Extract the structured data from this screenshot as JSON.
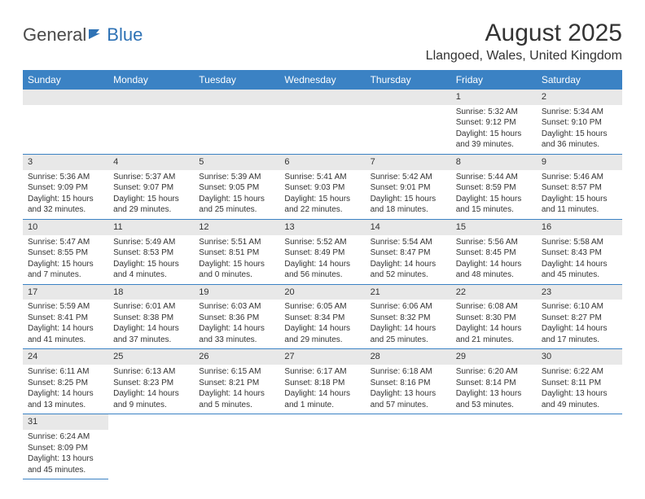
{
  "logo": {
    "general": "General",
    "blue": "Blue"
  },
  "title": "August 2025",
  "location": "Llangoed, Wales, United Kingdom",
  "colors": {
    "header_bg": "#3b82c4",
    "header_text": "#ffffff",
    "daynum_bg": "#e8e8e8",
    "border": "#3b82c4",
    "logo_gray": "#4a4a4a",
    "logo_blue": "#2e72b5"
  },
  "weekdays": [
    "Sunday",
    "Monday",
    "Tuesday",
    "Wednesday",
    "Thursday",
    "Friday",
    "Saturday"
  ],
  "weeks": [
    [
      null,
      null,
      null,
      null,
      null,
      {
        "n": "1",
        "sr": "Sunrise: 5:32 AM",
        "ss": "Sunset: 9:12 PM",
        "d1": "Daylight: 15 hours",
        "d2": "and 39 minutes."
      },
      {
        "n": "2",
        "sr": "Sunrise: 5:34 AM",
        "ss": "Sunset: 9:10 PM",
        "d1": "Daylight: 15 hours",
        "d2": "and 36 minutes."
      }
    ],
    [
      {
        "n": "3",
        "sr": "Sunrise: 5:36 AM",
        "ss": "Sunset: 9:09 PM",
        "d1": "Daylight: 15 hours",
        "d2": "and 32 minutes."
      },
      {
        "n": "4",
        "sr": "Sunrise: 5:37 AM",
        "ss": "Sunset: 9:07 PM",
        "d1": "Daylight: 15 hours",
        "d2": "and 29 minutes."
      },
      {
        "n": "5",
        "sr": "Sunrise: 5:39 AM",
        "ss": "Sunset: 9:05 PM",
        "d1": "Daylight: 15 hours",
        "d2": "and 25 minutes."
      },
      {
        "n": "6",
        "sr": "Sunrise: 5:41 AM",
        "ss": "Sunset: 9:03 PM",
        "d1": "Daylight: 15 hours",
        "d2": "and 22 minutes."
      },
      {
        "n": "7",
        "sr": "Sunrise: 5:42 AM",
        "ss": "Sunset: 9:01 PM",
        "d1": "Daylight: 15 hours",
        "d2": "and 18 minutes."
      },
      {
        "n": "8",
        "sr": "Sunrise: 5:44 AM",
        "ss": "Sunset: 8:59 PM",
        "d1": "Daylight: 15 hours",
        "d2": "and 15 minutes."
      },
      {
        "n": "9",
        "sr": "Sunrise: 5:46 AM",
        "ss": "Sunset: 8:57 PM",
        "d1": "Daylight: 15 hours",
        "d2": "and 11 minutes."
      }
    ],
    [
      {
        "n": "10",
        "sr": "Sunrise: 5:47 AM",
        "ss": "Sunset: 8:55 PM",
        "d1": "Daylight: 15 hours",
        "d2": "and 7 minutes."
      },
      {
        "n": "11",
        "sr": "Sunrise: 5:49 AM",
        "ss": "Sunset: 8:53 PM",
        "d1": "Daylight: 15 hours",
        "d2": "and 4 minutes."
      },
      {
        "n": "12",
        "sr": "Sunrise: 5:51 AM",
        "ss": "Sunset: 8:51 PM",
        "d1": "Daylight: 15 hours",
        "d2": "and 0 minutes."
      },
      {
        "n": "13",
        "sr": "Sunrise: 5:52 AM",
        "ss": "Sunset: 8:49 PM",
        "d1": "Daylight: 14 hours",
        "d2": "and 56 minutes."
      },
      {
        "n": "14",
        "sr": "Sunrise: 5:54 AM",
        "ss": "Sunset: 8:47 PM",
        "d1": "Daylight: 14 hours",
        "d2": "and 52 minutes."
      },
      {
        "n": "15",
        "sr": "Sunrise: 5:56 AM",
        "ss": "Sunset: 8:45 PM",
        "d1": "Daylight: 14 hours",
        "d2": "and 48 minutes."
      },
      {
        "n": "16",
        "sr": "Sunrise: 5:58 AM",
        "ss": "Sunset: 8:43 PM",
        "d1": "Daylight: 14 hours",
        "d2": "and 45 minutes."
      }
    ],
    [
      {
        "n": "17",
        "sr": "Sunrise: 5:59 AM",
        "ss": "Sunset: 8:41 PM",
        "d1": "Daylight: 14 hours",
        "d2": "and 41 minutes."
      },
      {
        "n": "18",
        "sr": "Sunrise: 6:01 AM",
        "ss": "Sunset: 8:38 PM",
        "d1": "Daylight: 14 hours",
        "d2": "and 37 minutes."
      },
      {
        "n": "19",
        "sr": "Sunrise: 6:03 AM",
        "ss": "Sunset: 8:36 PM",
        "d1": "Daylight: 14 hours",
        "d2": "and 33 minutes."
      },
      {
        "n": "20",
        "sr": "Sunrise: 6:05 AM",
        "ss": "Sunset: 8:34 PM",
        "d1": "Daylight: 14 hours",
        "d2": "and 29 minutes."
      },
      {
        "n": "21",
        "sr": "Sunrise: 6:06 AM",
        "ss": "Sunset: 8:32 PM",
        "d1": "Daylight: 14 hours",
        "d2": "and 25 minutes."
      },
      {
        "n": "22",
        "sr": "Sunrise: 6:08 AM",
        "ss": "Sunset: 8:30 PM",
        "d1": "Daylight: 14 hours",
        "d2": "and 21 minutes."
      },
      {
        "n": "23",
        "sr": "Sunrise: 6:10 AM",
        "ss": "Sunset: 8:27 PM",
        "d1": "Daylight: 14 hours",
        "d2": "and 17 minutes."
      }
    ],
    [
      {
        "n": "24",
        "sr": "Sunrise: 6:11 AM",
        "ss": "Sunset: 8:25 PM",
        "d1": "Daylight: 14 hours",
        "d2": "and 13 minutes."
      },
      {
        "n": "25",
        "sr": "Sunrise: 6:13 AM",
        "ss": "Sunset: 8:23 PM",
        "d1": "Daylight: 14 hours",
        "d2": "and 9 minutes."
      },
      {
        "n": "26",
        "sr": "Sunrise: 6:15 AM",
        "ss": "Sunset: 8:21 PM",
        "d1": "Daylight: 14 hours",
        "d2": "and 5 minutes."
      },
      {
        "n": "27",
        "sr": "Sunrise: 6:17 AM",
        "ss": "Sunset: 8:18 PM",
        "d1": "Daylight: 14 hours",
        "d2": "and 1 minute."
      },
      {
        "n": "28",
        "sr": "Sunrise: 6:18 AM",
        "ss": "Sunset: 8:16 PM",
        "d1": "Daylight: 13 hours",
        "d2": "and 57 minutes."
      },
      {
        "n": "29",
        "sr": "Sunrise: 6:20 AM",
        "ss": "Sunset: 8:14 PM",
        "d1": "Daylight: 13 hours",
        "d2": "and 53 minutes."
      },
      {
        "n": "30",
        "sr": "Sunrise: 6:22 AM",
        "ss": "Sunset: 8:11 PM",
        "d1": "Daylight: 13 hours",
        "d2": "and 49 minutes."
      }
    ],
    [
      {
        "n": "31",
        "sr": "Sunrise: 6:24 AM",
        "ss": "Sunset: 8:09 PM",
        "d1": "Daylight: 13 hours",
        "d2": "and 45 minutes."
      },
      null,
      null,
      null,
      null,
      null,
      null
    ]
  ]
}
